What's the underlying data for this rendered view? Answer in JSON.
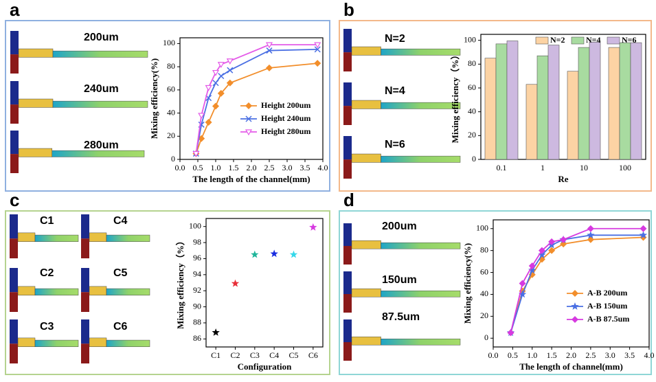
{
  "panels": [
    {
      "letter": "a",
      "image_labels": [
        "200um",
        "240um",
        "280um"
      ]
    },
    {
      "letter": "b",
      "image_labels": [
        "N=2",
        "N=4",
        "N=6"
      ]
    },
    {
      "letter": "c",
      "image_labels": [
        "C1",
        "C4",
        "C2",
        "C5",
        "C3",
        "C6"
      ]
    },
    {
      "letter": "d",
      "image_labels": [
        "200um",
        "150um",
        "87.5um"
      ]
    }
  ],
  "chart_data": [
    {
      "type": "line",
      "x_label": "The length of the channel(mm)",
      "y_label": "Mixing efficiency(%)",
      "xlim": [
        0,
        4
      ],
      "xticks": [
        {
          "value": 0,
          "label": "0.0"
        },
        0.5,
        {
          "value": 1,
          "label": "1.0"
        },
        1.5,
        {
          "value": 2,
          "label": "2.0"
        },
        2.5,
        {
          "value": 3,
          "label": "3.0"
        },
        3.5,
        {
          "value": 4,
          "label": "4.0"
        }
      ],
      "ylim": [
        0,
        105
      ],
      "yticks": [
        0,
        20,
        40,
        60,
        80,
        100
      ],
      "legend": "lower-right",
      "series": [
        {
          "name": "Height 200um",
          "color": "#f28e2b",
          "marker": "diamond",
          "x": [
            0.45,
            0.6,
            0.8,
            1.0,
            1.15,
            1.4,
            2.5,
            3.85
          ],
          "values": [
            5,
            18,
            32,
            46,
            57,
            66,
            79,
            83
          ]
        },
        {
          "name": "Height 240um",
          "color": "#4a6fe3",
          "marker": "x",
          "x": [
            0.45,
            0.6,
            0.8,
            1.0,
            1.15,
            1.4,
            2.5,
            3.85
          ],
          "values": [
            5,
            30,
            53,
            66,
            72,
            77,
            94,
            95
          ]
        },
        {
          "name": "Height 280um",
          "color": "#e45ae8",
          "marker": "triangle",
          "x": [
            0.45,
            0.6,
            0.8,
            1.0,
            1.15,
            1.4,
            2.5,
            3.85
          ],
          "values": [
            5,
            38,
            62,
            75,
            82,
            85,
            99,
            99
          ]
        }
      ]
    },
    {
      "type": "bar",
      "x_label": "Re",
      "y_label": "Mixing efficiency（%）",
      "categories": [
        "0.1",
        "1",
        "10",
        "100"
      ],
      "ylim": [
        0,
        105
      ],
      "yticks": [
        0,
        20,
        40,
        60,
        80,
        100
      ],
      "legend": "top",
      "series": [
        {
          "name": "N=2",
          "color": "#fcd3a4",
          "values": [
            85,
            63,
            74,
            94
          ]
        },
        {
          "name": "N=4",
          "color": "#a8dba0",
          "values": [
            97,
            87,
            94,
            98
          ]
        },
        {
          "name": "N=6",
          "color": "#cdb9e0",
          "values": [
            99.5,
            96,
            98.5,
            98
          ]
        }
      ]
    },
    {
      "type": "scatter",
      "x_label": "Configuration",
      "y_label": "Mixing efficiency（%）",
      "categories": [
        "C1",
        "C2",
        "C3",
        "C4",
        "C5",
        "C6"
      ],
      "values": [
        86.8,
        92.9,
        96.5,
        96.6,
        96.5,
        99.9
      ],
      "colors": [
        "#000000",
        "#e8303a",
        "#1fb59a",
        "#1a2ee0",
        "#35d8ea",
        "#d63ae0"
      ],
      "ylim": [
        85,
        101
      ],
      "yticks": [
        86,
        88,
        90,
        92,
        94,
        96,
        98,
        100
      ]
    },
    {
      "type": "line",
      "x_label": "The length of channel(mm)",
      "y_label": "Mixing efficiency(%)",
      "xlim": [
        0,
        4
      ],
      "xticks": [
        {
          "value": 0,
          "label": "0.0"
        },
        0.5,
        {
          "value": 1,
          "label": "1.0"
        },
        1.5,
        {
          "value": 2,
          "label": "2.0"
        },
        2.5,
        {
          "value": 3,
          "label": "3.0"
        },
        3.5,
        {
          "value": 4,
          "label": "4.0"
        }
      ],
      "ylim": [
        -8,
        108
      ],
      "yticks": [
        0,
        20,
        40,
        60,
        80,
        100
      ],
      "legend": "lower-right",
      "series": [
        {
          "name": "A-B 200um",
          "color": "#f28e2b",
          "marker": "diamond",
          "x": [
            0.45,
            0.75,
            1.0,
            1.25,
            1.5,
            1.8,
            2.5,
            3.85
          ],
          "values": [
            5,
            43,
            58,
            72,
            80,
            86,
            90,
            92
          ]
        },
        {
          "name": "A-B 150um",
          "color": "#4a6fe3",
          "marker": "star",
          "x": [
            0.45,
            0.75,
            1.0,
            1.25,
            1.5,
            1.8,
            2.5,
            3.85
          ],
          "values": [
            5,
            40,
            62,
            76,
            85,
            90,
            94,
            94
          ]
        },
        {
          "name": "A-B 87.5um",
          "color": "#d63ae0",
          "marker": "diamond",
          "x": [
            0.45,
            0.75,
            1.0,
            1.25,
            1.5,
            1.8,
            2.5,
            3.85
          ],
          "values": [
            5,
            50,
            66,
            80,
            88,
            90,
            100,
            100
          ]
        }
      ]
    }
  ]
}
